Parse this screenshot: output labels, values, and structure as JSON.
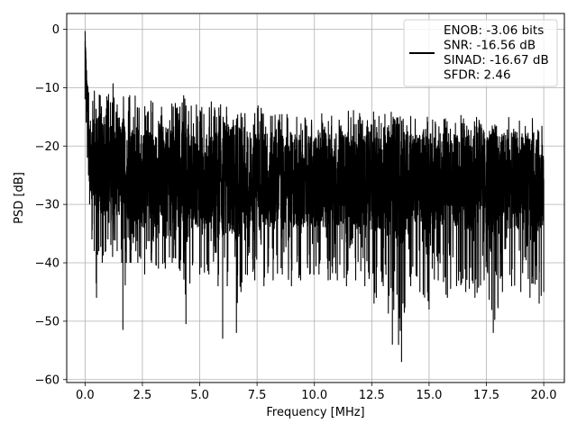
{
  "chart_data": {
    "type": "line",
    "xlabel": "Frequency [MHz]",
    "ylabel": "PSD [dB]",
    "xlim": [
      -0.8,
      20.9
    ],
    "ylim": [
      -60.5,
      2.7
    ],
    "xticks": [
      0.0,
      2.5,
      5.0,
      7.5,
      10.0,
      12.5,
      15.0,
      17.5,
      20.0
    ],
    "xtick_labels": [
      "0.0",
      "2.5",
      "5.0",
      "7.5",
      "10.0",
      "12.5",
      "15.0",
      "17.5",
      "20.0"
    ],
    "yticks": [
      0,
      -10,
      -20,
      -30,
      -40,
      -50,
      -60
    ],
    "ytick_labels": [
      "0",
      "−10",
      "−20",
      "−30",
      "−40",
      "−50",
      "−60"
    ],
    "grid": true,
    "legend_position": "top-right",
    "legend_lines": [
      "ENOB: -3.06 bits",
      "SNR: -16.56 dB",
      "SINAD: -16.67 dB",
      "SFDR: 2.46"
    ],
    "series": [
      {
        "color": "#000000",
        "x": [
          0.0,
          0.05,
          0.1,
          0.15,
          0.2,
          0.3,
          0.4,
          0.5,
          0.6,
          0.75,
          0.9,
          1.0,
          1.2,
          1.4,
          1.6,
          1.65,
          1.8,
          2.0,
          2.3,
          2.6,
          2.9,
          3.2,
          3.5,
          3.8,
          4.1,
          4.4,
          4.7,
          5.0,
          5.4,
          5.8,
          6.0,
          6.2,
          6.6,
          6.8,
          7.0,
          7.4,
          7.8,
          8.2,
          8.6,
          9.0,
          9.4,
          9.8,
          10.2,
          10.6,
          11.0,
          11.4,
          11.8,
          12.2,
          12.6,
          12.7,
          13.0,
          13.4,
          13.8,
          14.2,
          14.6,
          15.0,
          15.4,
          15.8,
          16.2,
          16.6,
          17.0,
          17.4,
          17.8,
          18.2,
          18.6,
          19.0,
          19.4,
          19.8,
          20.0
        ],
        "upper": [
          -0.3,
          -5,
          -8,
          -8,
          -9,
          -9,
          -10,
          -9,
          -10,
          -10,
          -12,
          -9,
          -9,
          -12,
          -12,
          -11,
          -12,
          -11,
          -10,
          -12,
          -12,
          -11,
          -11,
          -12,
          -12,
          -10,
          -12,
          -13,
          -12,
          -13,
          -12,
          -13,
          -13,
          -12,
          -12,
          -13,
          -13,
          -13,
          -14,
          -14,
          -13,
          -14,
          -13,
          -14,
          -14,
          -14,
          -13,
          -14,
          -14,
          -15,
          -14,
          -14,
          -15,
          -14,
          -15,
          -15,
          -14,
          -15,
          -15,
          -14,
          -15,
          -15,
          -15,
          -15,
          -14,
          -15,
          -15,
          -15,
          -16
        ],
        "lower": [
          -12,
          -16,
          -22,
          -25,
          -30,
          -36,
          -38,
          -46,
          -38,
          -40,
          -38,
          -36,
          -39,
          -38,
          -40,
          -51.5,
          -40,
          -40,
          -40,
          -42,
          -40,
          -41,
          -41,
          -40,
          -41,
          -50.5,
          -40,
          -42,
          -42,
          -44,
          -53,
          -44,
          -52,
          -45,
          -42,
          -43,
          -44,
          -43,
          -42,
          -44,
          -43,
          -42,
          -42,
          -43,
          -43,
          -44,
          -43,
          -44,
          -47,
          -46,
          -44,
          -54,
          -57,
          -44,
          -45,
          -48,
          -43,
          -46,
          -44,
          -45,
          -46,
          -43,
          -52,
          -45,
          -44,
          -45,
          -46,
          -47,
          -45
        ],
        "mid": [
          -2,
          -8,
          -14,
          -18,
          -22,
          -22,
          -23,
          -24,
          -24,
          -24,
          -24,
          -24,
          -24,
          -24,
          -24,
          -24,
          -25,
          -25,
          -25,
          -25,
          -25,
          -25,
          -25,
          -25,
          -26,
          -26,
          -26,
          -26,
          -26,
          -26,
          -26,
          -26,
          -26,
          -26,
          -26,
          -26,
          -26,
          -26,
          -26,
          -26,
          -26,
          -26,
          -26,
          -26,
          -26,
          -26,
          -26,
          -26,
          -26,
          -26,
          -26,
          -26,
          -26,
          -26,
          -26,
          -26,
          -26,
          -26,
          -26,
          -26,
          -26,
          -26,
          -26,
          -26,
          -26,
          -26,
          -26,
          -26,
          -26
        ]
      }
    ]
  }
}
